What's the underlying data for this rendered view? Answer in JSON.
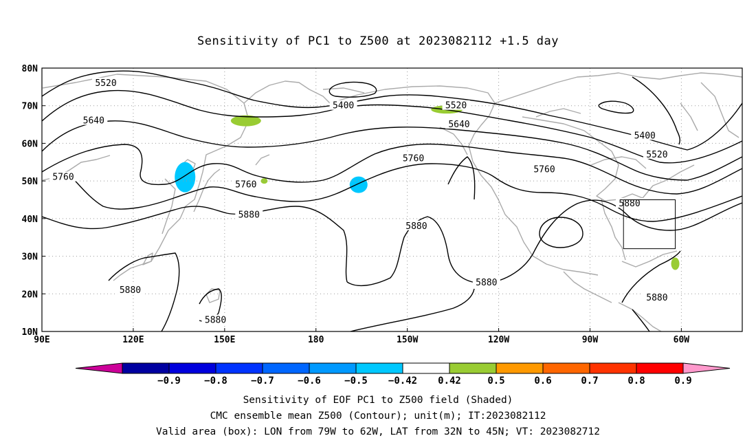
{
  "title": "Sensitivity of PC1 to Z500 at 2023082112 +1.5 day",
  "axes": {
    "lat_labels": [
      "80N",
      "70N",
      "60N",
      "50N",
      "40N",
      "30N",
      "20N",
      "10N"
    ],
    "lon_labels": [
      "90E",
      "120E",
      "150E",
      "180",
      "150W",
      "120W",
      "90W",
      "60W"
    ],
    "lat_range": [
      10,
      80
    ],
    "lon_range_deg_east": [
      90,
      320
    ],
    "grid": "dotted"
  },
  "contours": {
    "unit": "m",
    "levels": [
      5400,
      5520,
      5640,
      5760,
      5880
    ],
    "labels": [
      {
        "text": "5520",
        "lon": 111,
        "lat": 76
      },
      {
        "text": "5400",
        "lon": 189,
        "lat": 70
      },
      {
        "text": "5520",
        "lon": 226,
        "lat": 70
      },
      {
        "text": "5640",
        "lon": 107,
        "lat": 66
      },
      {
        "text": "5640",
        "lon": 227,
        "lat": 65
      },
      {
        "text": "5760",
        "lon": 97,
        "lat": 51
      },
      {
        "text": "5760",
        "lon": 212,
        "lat": 56
      },
      {
        "text": "5760",
        "lon": 255,
        "lat": 53
      },
      {
        "text": "5760",
        "lon": 157,
        "lat": 49
      },
      {
        "text": "5880",
        "lon": 158,
        "lat": 41
      },
      {
        "text": "5880",
        "lon": 213,
        "lat": 38
      },
      {
        "text": "5880",
        "lon": 283,
        "lat": 44
      },
      {
        "text": "5400",
        "lon": 288,
        "lat": 62
      },
      {
        "text": "5520",
        "lon": 292,
        "lat": 57
      },
      {
        "text": "5880",
        "lon": 119,
        "lat": 21
      },
      {
        "text": "5880",
        "lon": 147,
        "lat": 13
      },
      {
        "text": "5880",
        "lon": 236,
        "lat": 23
      },
      {
        "text": "5880",
        "lon": 292,
        "lat": 19
      }
    ]
  },
  "shaded_regions": [
    {
      "value_range": [
        -0.5,
        -0.42
      ],
      "color": "#00c8ff",
      "lon": 137,
      "lat": 51
    },
    {
      "value_range": [
        -0.5,
        -0.42
      ],
      "color": "#00c8ff",
      "lon": 194,
      "lat": 49
    },
    {
      "value_range": [
        0.42,
        0.5
      ],
      "color": "#99cc33",
      "lon": 157,
      "lat": 66
    },
    {
      "value_range": [
        0.42,
        0.5
      ],
      "color": "#99cc33",
      "lon": 223,
      "lat": 69
    },
    {
      "value_range": [
        0.42,
        0.5
      ],
      "color": "#99cc33",
      "lon": 163,
      "lat": 50
    },
    {
      "value_range": [
        0.42,
        0.5
      ],
      "color": "#99cc33",
      "lon": 298,
      "lat": 28
    }
  ],
  "valid_box": {
    "lon_west": -79,
    "lon_east": -62,
    "lat_south": 32,
    "lat_north": 45
  },
  "colorbar": {
    "labels": [
      "-0.9",
      "-0.8",
      "-0.7",
      "-0.6",
      "-0.5",
      "-0.42",
      "0.42",
      "0.5",
      "0.6",
      "0.7",
      "0.8",
      "0.9"
    ],
    "colors": [
      "#cc0099",
      "#0000a0",
      "#0000dd",
      "#0033ff",
      "#0066ff",
      "#0099ff",
      "#00c8ff",
      "#ffffff",
      "#99cc33",
      "#ff9900",
      "#ff6600",
      "#ff3300",
      "#ff0000",
      "#ff99cc"
    ]
  },
  "footer": {
    "line1": "Sensitivity of EOF PC1 to Z500 field (Shaded)",
    "line2": "CMC ensemble mean Z500 (Contour); unit(m); IT:2023082112",
    "line3": "Valid area (box): LON from 79W to 62W, LAT from 32N to 45N; VT: 2023082712"
  },
  "colors": {
    "coast": "#aaaaaa",
    "contour": "#000000",
    "grid": "#999999"
  }
}
